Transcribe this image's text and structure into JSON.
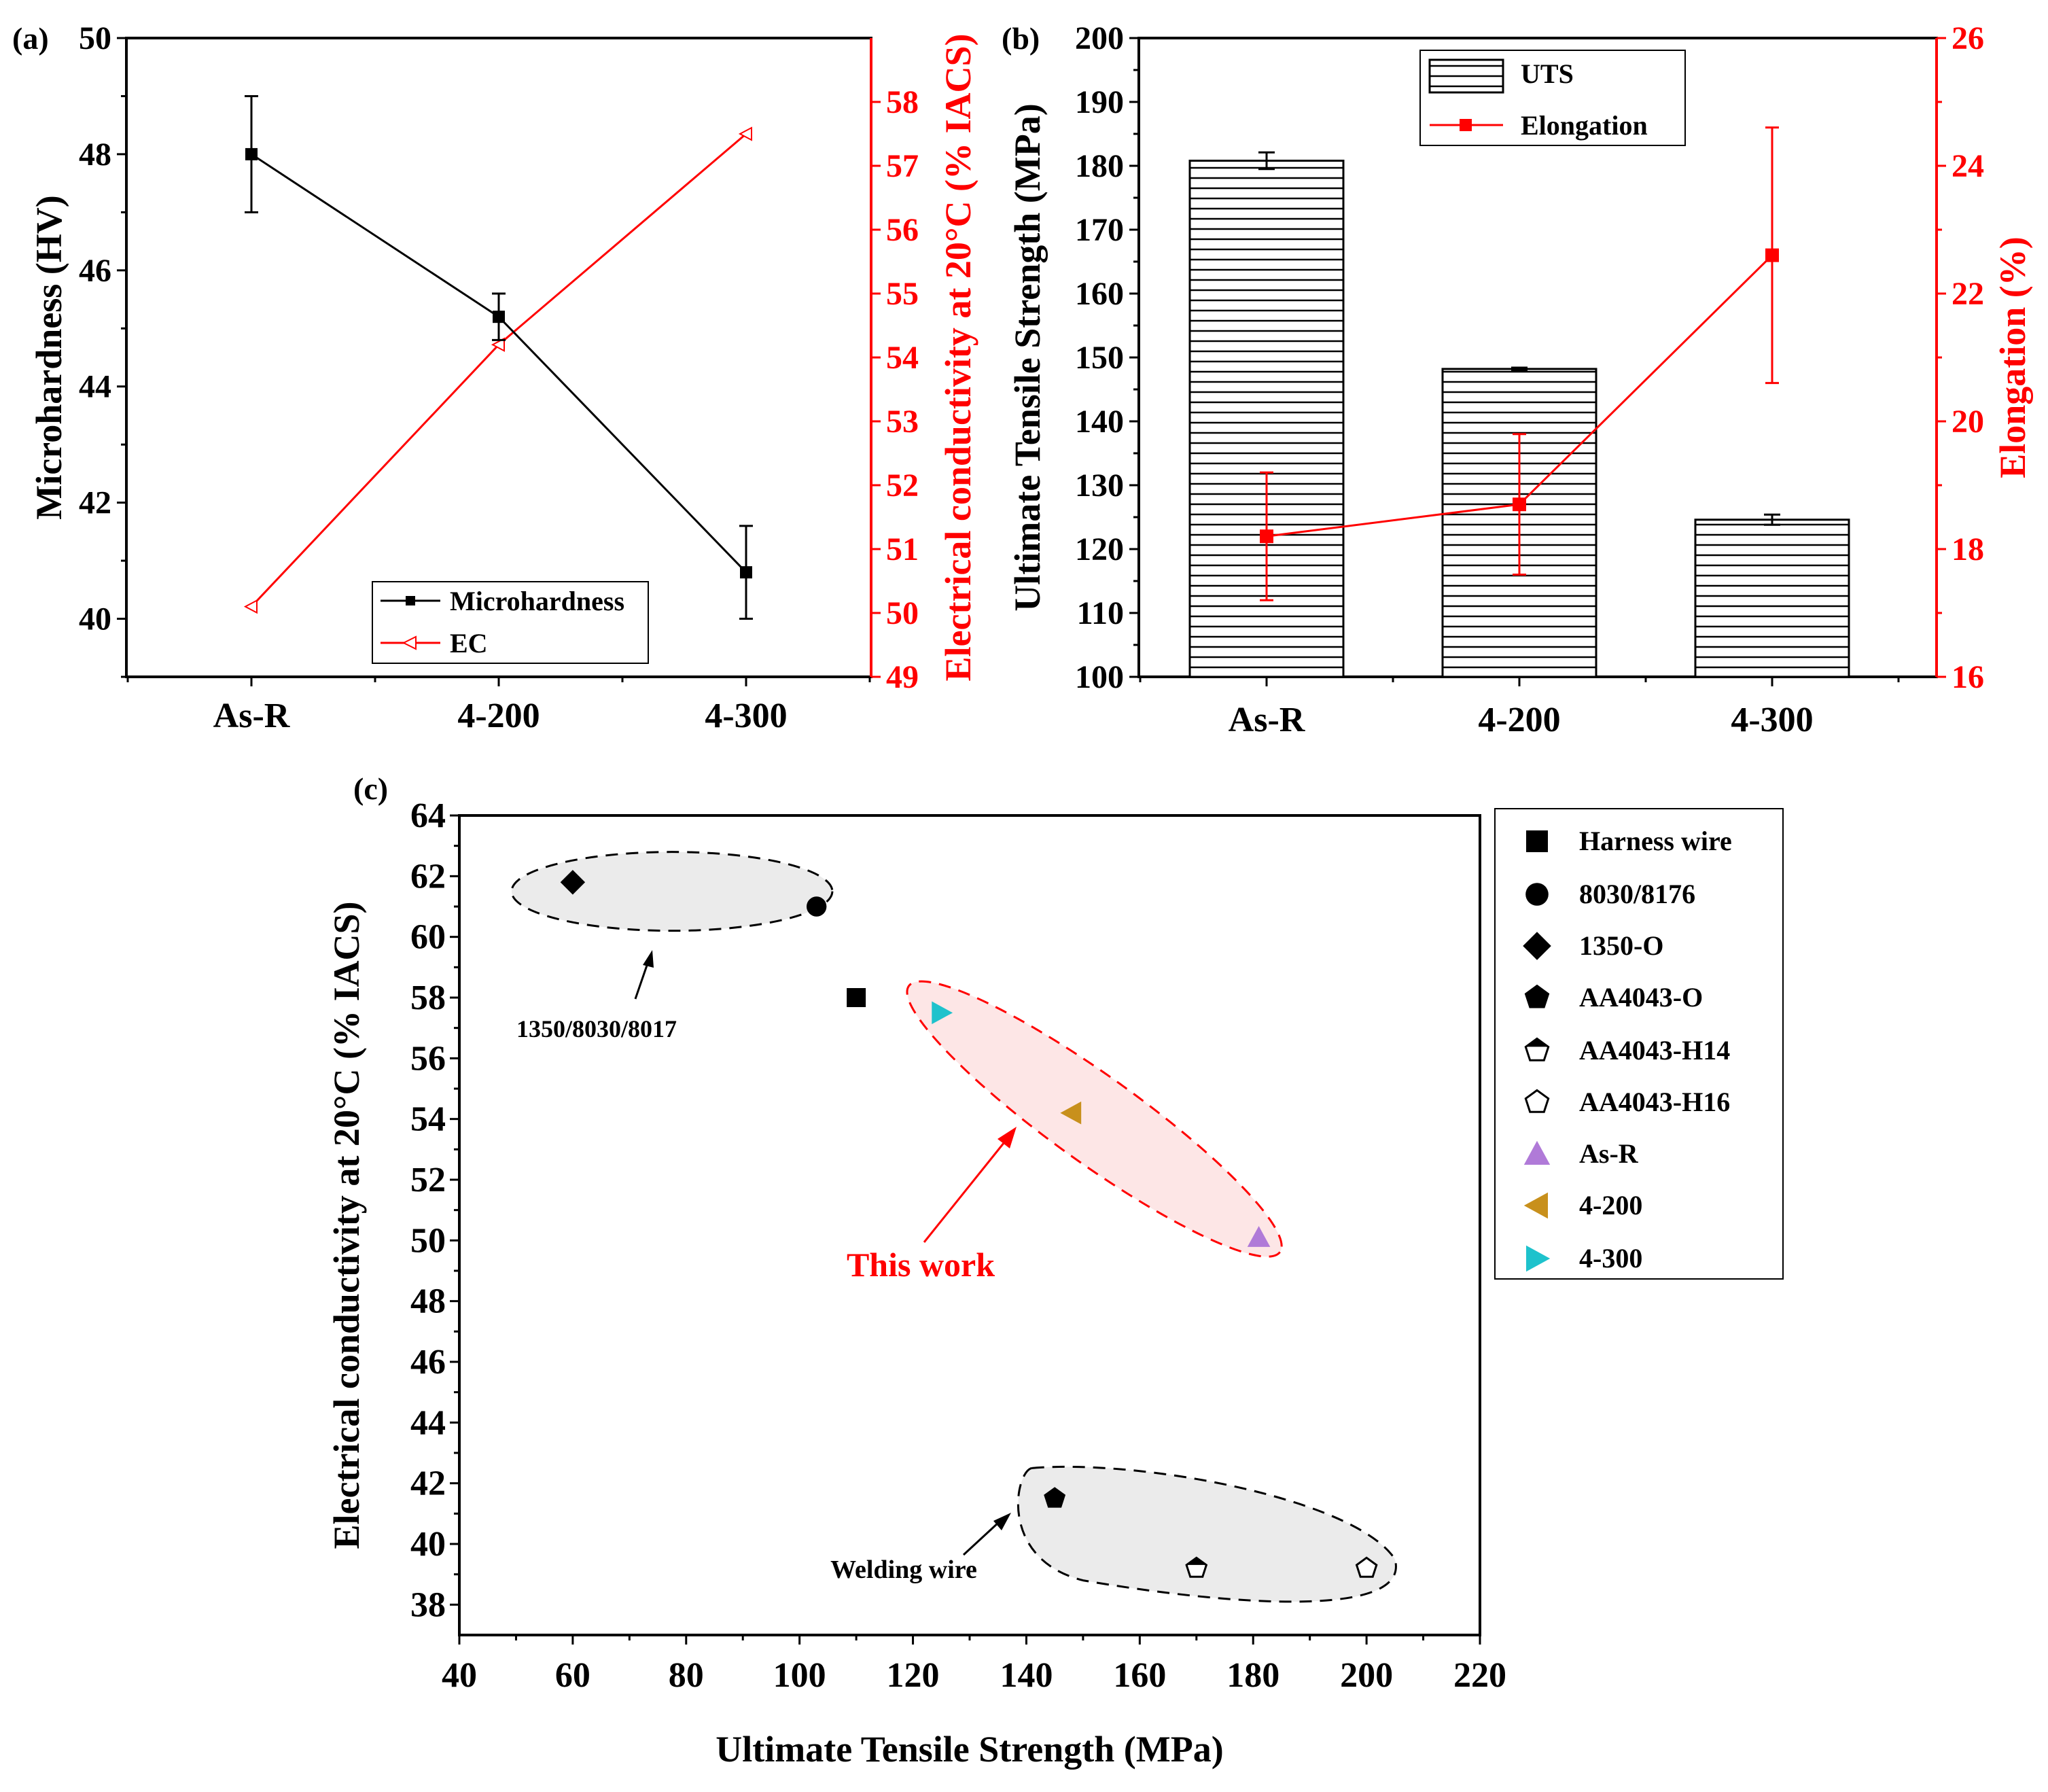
{
  "chart_data": [
    {
      "panel": "(a)",
      "type": "line",
      "categories": [
        "As-R",
        "4-200",
        "4-300"
      ],
      "xlabel": "",
      "ylabel": "Microhardness (HV)",
      "ylim": [
        39,
        50
      ],
      "yticks": [
        "40",
        "42",
        "44",
        "46",
        "48",
        "50"
      ],
      "y2label": "Electrical conductivity at 20°C (% IACS)",
      "y2lim": [
        49,
        59
      ],
      "y2ticks": [
        "49",
        "50",
        "51",
        "52",
        "53",
        "54",
        "55",
        "56",
        "57",
        "58"
      ],
      "series": [
        {
          "name": "Microhardness",
          "axis": "left",
          "color": "#000000",
          "marker": "square",
          "values": [
            48.0,
            45.2,
            40.8
          ],
          "errors": [
            1.0,
            0.4,
            0.8
          ]
        },
        {
          "name": "EC",
          "axis": "right",
          "color": "#ff0000",
          "marker": "triangle-left-open",
          "values": [
            50.1,
            54.2,
            57.5
          ]
        }
      ],
      "legend": "bottom-right"
    },
    {
      "panel": "(b)",
      "type": "bar",
      "categories": [
        "As-R",
        "4-200",
        "4-300"
      ],
      "xlabel": "",
      "ylabel": "Ultimate Tensile Strength (MPa)",
      "ylim": [
        100,
        200
      ],
      "yticks": [
        "100",
        "110",
        "120",
        "130",
        "140",
        "150",
        "160",
        "170",
        "180",
        "190",
        "200"
      ],
      "y2label": "Elongation (%)",
      "y2lim": [
        16,
        26
      ],
      "y2ticks": [
        "16",
        "18",
        "20",
        "22",
        "24",
        "26"
      ],
      "series": [
        {
          "name": "UTS",
          "axis": "left",
          "kind": "bar",
          "color": "#000000",
          "values": [
            180.8,
            148.2,
            124.6
          ],
          "errors": [
            1.3,
            0.2,
            0.8
          ]
        },
        {
          "name": "Elongation",
          "axis": "right",
          "kind": "line",
          "color": "#ff0000",
          "marker": "square",
          "values": [
            18.2,
            18.7,
            22.6
          ],
          "errors": [
            1.0,
            1.1,
            2.0
          ]
        }
      ],
      "legend": "top-center"
    },
    {
      "panel": "(c)",
      "type": "scatter",
      "xlabel": "Ultimate Tensile Strength (MPa)",
      "ylabel": "Electrical conductivity at 20°C (% IACS)",
      "xlim": [
        40,
        220
      ],
      "ylim": [
        37,
        64
      ],
      "xticks": [
        "40",
        "60",
        "80",
        "100",
        "120",
        "140",
        "160",
        "180",
        "200",
        "220"
      ],
      "yticks": [
        "38",
        "40",
        "42",
        "44",
        "46",
        "48",
        "50",
        "52",
        "54",
        "56",
        "58",
        "60",
        "62",
        "64"
      ],
      "series": [
        {
          "name": "Harness wire",
          "marker": "square",
          "color": "#000000",
          "points": [
            [
              110,
              58.0
            ]
          ]
        },
        {
          "name": "8030/8176",
          "marker": "circle",
          "color": "#000000",
          "points": [
            [
              103,
              61.0
            ]
          ]
        },
        {
          "name": "1350-O",
          "marker": "diamond",
          "color": "#000000",
          "points": [
            [
              60,
              61.8
            ]
          ]
        },
        {
          "name": "AA4043-O",
          "marker": "pentagon",
          "color": "#000000",
          "points": [
            [
              145,
              41.5
            ]
          ]
        },
        {
          "name": "AA4043-H14",
          "marker": "pentagon-half",
          "color": "#000000",
          "points": [
            [
              170,
              39.2
            ]
          ]
        },
        {
          "name": "AA4043-H16",
          "marker": "pentagon-open",
          "color": "#000000",
          "points": [
            [
              200,
              39.2
            ]
          ]
        },
        {
          "name": "As-R",
          "marker": "triangle-up",
          "color": "#b07ad8",
          "points": [
            [
              181,
              50.1
            ]
          ]
        },
        {
          "name": "4-200",
          "marker": "triangle-left",
          "color": "#c8901c",
          "points": [
            [
              148,
              54.2
            ]
          ]
        },
        {
          "name": "4-300",
          "marker": "triangle-right",
          "color": "#1ec2cc",
          "points": [
            [
              125,
              57.5
            ]
          ]
        }
      ],
      "annotations": [
        {
          "text": "1350/8030/8017",
          "color": "#000000"
        },
        {
          "text": "This work",
          "color": "#ff0000"
        },
        {
          "text": "Welding wire",
          "color": "#000000"
        }
      ],
      "legend": "right"
    }
  ]
}
